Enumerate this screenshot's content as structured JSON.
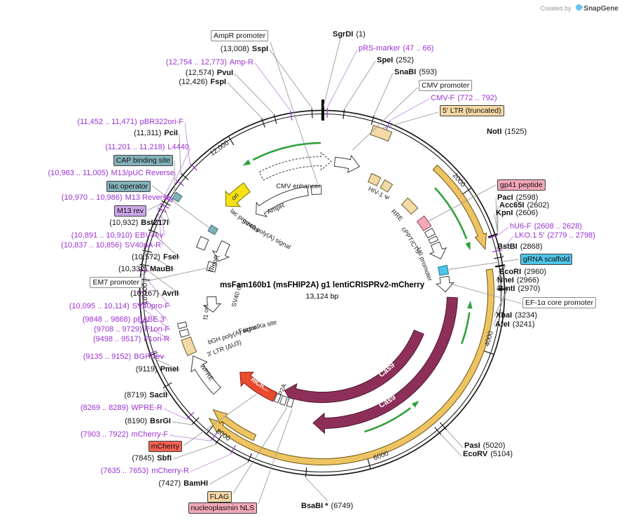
{
  "watermark": {
    "created_by": "Created by",
    "brand": "SnapGene"
  },
  "plasmid": {
    "name": "msFam160b1 (msFHIP2A) g1 lentiCRISPRv2-mCherry",
    "size": "13,124 bp"
  },
  "ring_numbers": [
    "2000",
    "4000",
    "6000",
    "8000",
    "10,000",
    "12,000"
  ],
  "colors": {
    "primer": "#9b30d2",
    "enzyme": "#000000",
    "tan": "#f3d9a5",
    "teal": "#83b1ba",
    "violet": "#cda6e8",
    "pink": "#f3a8b8",
    "cyan": "#4fc4e8",
    "red": "#f06252",
    "white": "#ffffff",
    "maroon": "#8e2f5a",
    "gold": "#eec463",
    "green": "#2ea13c",
    "yellow": "#f6e215",
    "mch_red": "#ea4a2e"
  },
  "labels": {
    "ampr_promoter": {
      "name": "AmpR promoter"
    },
    "sgrdi": {
      "name": "SgrDI",
      "pos": "(1)"
    },
    "sspi": {
      "pos": "(13,008)",
      "name": "SspI"
    },
    "prs_marker": {
      "name": "pRS-marker",
      "pos": "(47 .. 66)"
    },
    "spei": {
      "name": "SpeI",
      "pos": "(252)"
    },
    "amp_r": {
      "pos": "(12,754 .. 12,773)",
      "name": "Amp-R"
    },
    "snabi": {
      "name": "SnaBI",
      "pos": "(593)"
    },
    "pvui": {
      "pos": "(12,574)",
      "name": "PvuI"
    },
    "cmv_promoter": {
      "name": "CMV promoter"
    },
    "fspi": {
      "pos": "(12,426)",
      "name": "FspI"
    },
    "cmv_f": {
      "name": "CMV-F",
      "pos": "(772 .. 792)"
    },
    "ltr5": {
      "name": "5' LTR (truncated)"
    },
    "pbr322ori_f": {
      "pos": "(11,452 .. 11,471)",
      "name": "pBR322ori-F"
    },
    "noti": {
      "name": "NotI",
      "pos": "(1525)"
    },
    "pcii": {
      "pos": "(11,311)",
      "name": "PciI"
    },
    "l4440": {
      "pos": "(11,201 .. 11,218)",
      "name": "L4440"
    },
    "cap": {
      "name": "CAP binding site"
    },
    "m13puc": {
      "pos": "(10,983 .. 11,005)",
      "name": "M13/pUC Reverse"
    },
    "lacop": {
      "name": "lac operator"
    },
    "gp41": {
      "name": "gp41 peptide"
    },
    "m13rev_p": {
      "pos": "(10,970 .. 10,986)",
      "name": "M13 Reverse"
    },
    "paci": {
      "name": "PacI",
      "pos": "(2598)"
    },
    "m13rev_box": {
      "name": "M13 rev"
    },
    "acc65i": {
      "name": "Acc65I",
      "pos": "(2602)"
    },
    "kpni": {
      "name": "KpnI",
      "pos": "(2606)"
    },
    "bstz17i": {
      "pos": "(10,932)",
      "name": "BstZ17I"
    },
    "hu6f": {
      "name": "hU6-F",
      "pos": "(2608 .. 2628)"
    },
    "ebv_rev": {
      "pos": "(10,891 .. 10,910)",
      "name": "EBV-rev"
    },
    "lko15": {
      "name": "LKO.1 5'",
      "pos": "(2779 .. 2798)"
    },
    "sv40pa_r": {
      "pos": "(10,837 .. 10,856)",
      "name": "SV40pA-R"
    },
    "bstbi": {
      "name": "BstBI",
      "pos": "(2868)"
    },
    "fsei": {
      "pos": "(10,572)",
      "name": "FseI"
    },
    "grna": {
      "name": "gRNA scaffold"
    },
    "maubi": {
      "pos": "(10,332)",
      "name": "MauBI"
    },
    "ecori": {
      "name": "EcoRI",
      "pos": "(2960)"
    },
    "em7": {
      "name": "EM7 promoter"
    },
    "nhei": {
      "name": "NheI",
      "pos": "(2966)"
    },
    "avrii": {
      "pos": "(10,167)",
      "name": "AvrII"
    },
    "bmti": {
      "name": "BmtI",
      "pos": "(2970)"
    },
    "ef1a": {
      "name": "EF-1α core promoter"
    },
    "sv40pro_f": {
      "pos": "(10,095 .. 10,114)",
      "name": "SV40pro-F"
    },
    "xbai": {
      "name": "XbaI",
      "pos": "(3234)"
    },
    "pbabe3": {
      "pos": "(9848 .. 9868)",
      "name": "pBABE 3'"
    },
    "afei": {
      "name": "AfeI",
      "pos": "(3241)"
    },
    "f1ori_f": {
      "pos": "(9708 .. 9729)",
      "name": "F1ori-F"
    },
    "f1ori_r": {
      "pos": "(9498 .. 9517)",
      "name": "F1ori-R"
    },
    "bgh_rev": {
      "pos": "(9135 .. 9152)",
      "name": "BGH-rev"
    },
    "pmei": {
      "pos": "(9119)",
      "name": "PmeI"
    },
    "sacii": {
      "pos": "(8719)",
      "name": "SacII"
    },
    "wpre_r": {
      "pos": "(8269 .. 8289)",
      "name": "WPRE-R"
    },
    "bsrgi": {
      "pos": "(8190)",
      "name": "BsrGI"
    },
    "mcherry_f": {
      "pos": "(7903 .. 7922)",
      "name": "mCherry-F"
    },
    "mcherry_box": {
      "name": "mCherry"
    },
    "sbfi": {
      "pos": "(7845)",
      "name": "SbfI"
    },
    "mcherry_r": {
      "pos": "(7635 .. 7653)",
      "name": "mCherry-R"
    },
    "bamhi": {
      "pos": "(7427)",
      "name": "BamHI"
    },
    "flag": {
      "name": "FLAG"
    },
    "npnls": {
      "name": "nucleoplasmin NLS"
    },
    "bsabi": {
      "name": "BsaBI *",
      "pos": "(6749)"
    },
    "pasi": {
      "name": "PasI",
      "pos": "(5020)"
    },
    "ecorv": {
      "name": "EcoRV",
      "pos": "(5104)"
    }
  },
  "interior": {
    "cmv_enhancer": "CMV enhancer",
    "hiv_psi": "HIV-1 Ψ",
    "rre": "RRE",
    "cppt": "cPPT/CTS",
    "u6": "U6 promoter",
    "ampr": "AmpR",
    "ori": "ori",
    "lac_promoter": "lac promoter",
    "sv40pa": "SV40 poly(A) signal",
    "bleor": "BleoR",
    "sv40ori": "SV40 ori",
    "f1ori": "f1 ori",
    "factor_xa": "Factor Xa site",
    "bgh_pa": "bGH poly(A) signal",
    "ltr3": "3' LTR (ΔU3)",
    "p2a": "P2A",
    "cas9": "Cas9",
    "mch": "mCh...",
    "wpre": "WPRE"
  }
}
